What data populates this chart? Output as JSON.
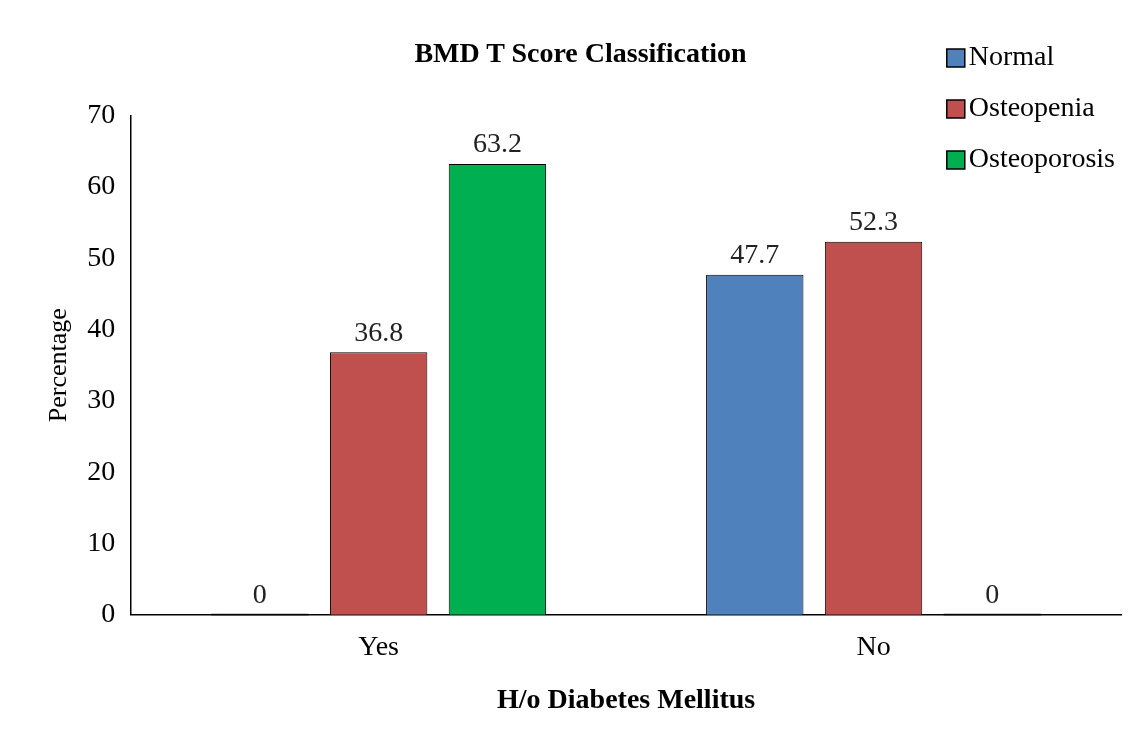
{
  "chart_data": {
    "type": "bar",
    "title": "BMD T Score Classification",
    "xlabel": "H/o Diabetes Mellitus",
    "ylabel": "Percentage",
    "categories": [
      "Yes",
      "No"
    ],
    "series": [
      {
        "name": "Normal",
        "color": "#4f81bd",
        "values": [
          0,
          47.7
        ]
      },
      {
        "name": "Osteopenia",
        "color": "#c0504d",
        "values": [
          36.8,
          52.3
        ]
      },
      {
        "name": "Osteoporosis",
        "color": "#00b050",
        "values": [
          63.2,
          0
        ]
      }
    ],
    "ylim": [
      0,
      70
    ],
    "yticks": [
      0,
      10,
      20,
      30,
      40,
      50,
      60,
      70
    ],
    "grid": false,
    "legend": "top right",
    "data_labels": true
  }
}
